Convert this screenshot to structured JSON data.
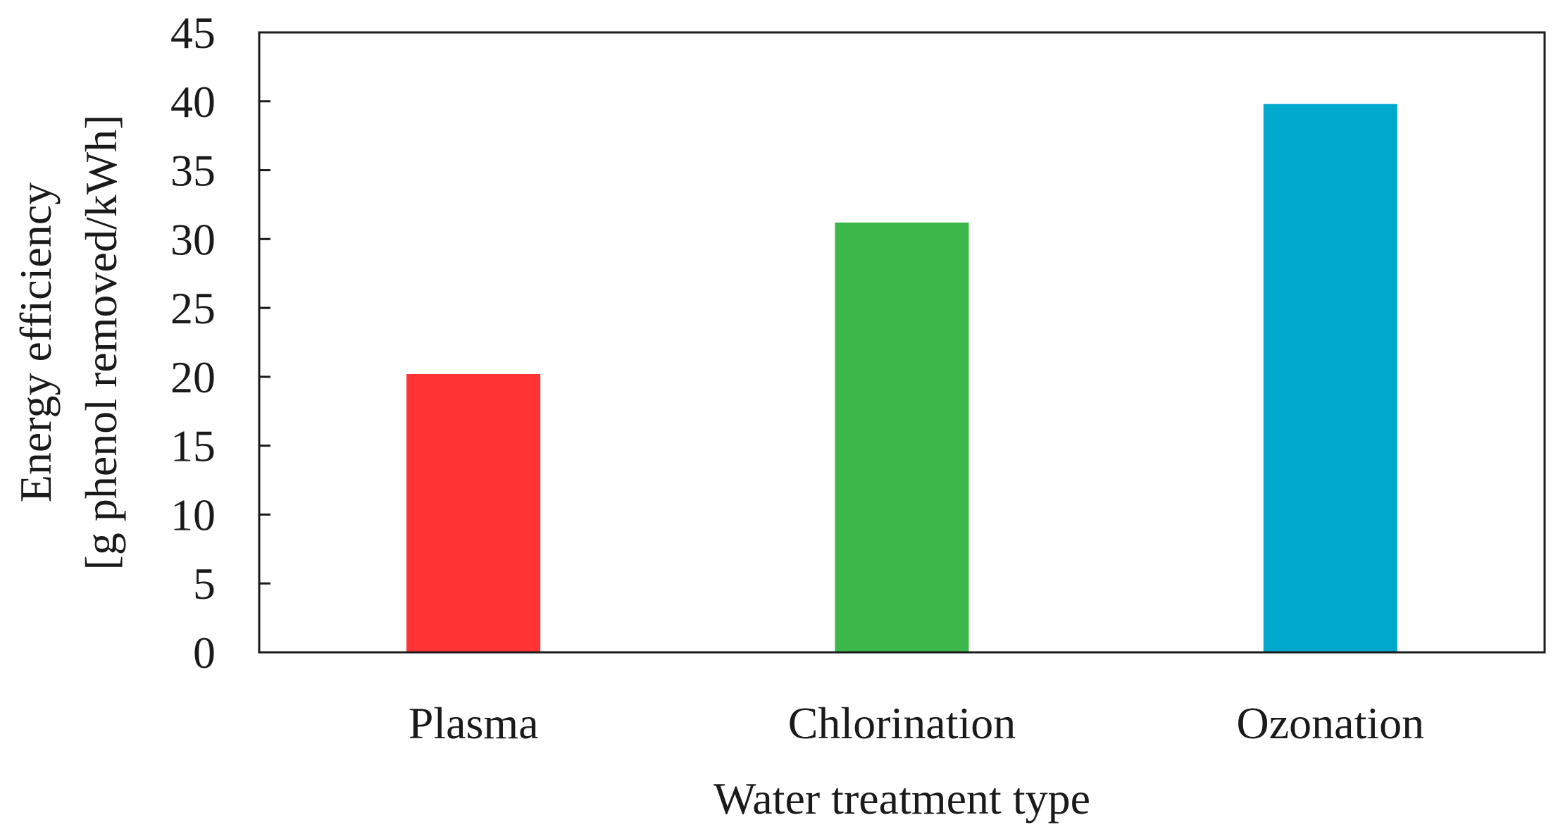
{
  "chart_data": {
    "type": "bar",
    "title": "",
    "categories": [
      "Plasma",
      "Chlorination",
      "Ozonation"
    ],
    "series": [
      {
        "values": [
          20.2,
          31.2,
          39.8
        ]
      }
    ],
    "colors": [
      "#ff3333",
      "#3cb84a",
      "#00a8cc"
    ],
    "xlabel": "Water treatment type",
    "ylabel": [
      "Energy efficiency",
      "[g phenol removed/kWh]"
    ],
    "ylim": [
      0,
      45
    ],
    "yticks": [
      0,
      5,
      10,
      15,
      20,
      25,
      30,
      35,
      40,
      45
    ],
    "grid": false,
    "legend": false
  }
}
